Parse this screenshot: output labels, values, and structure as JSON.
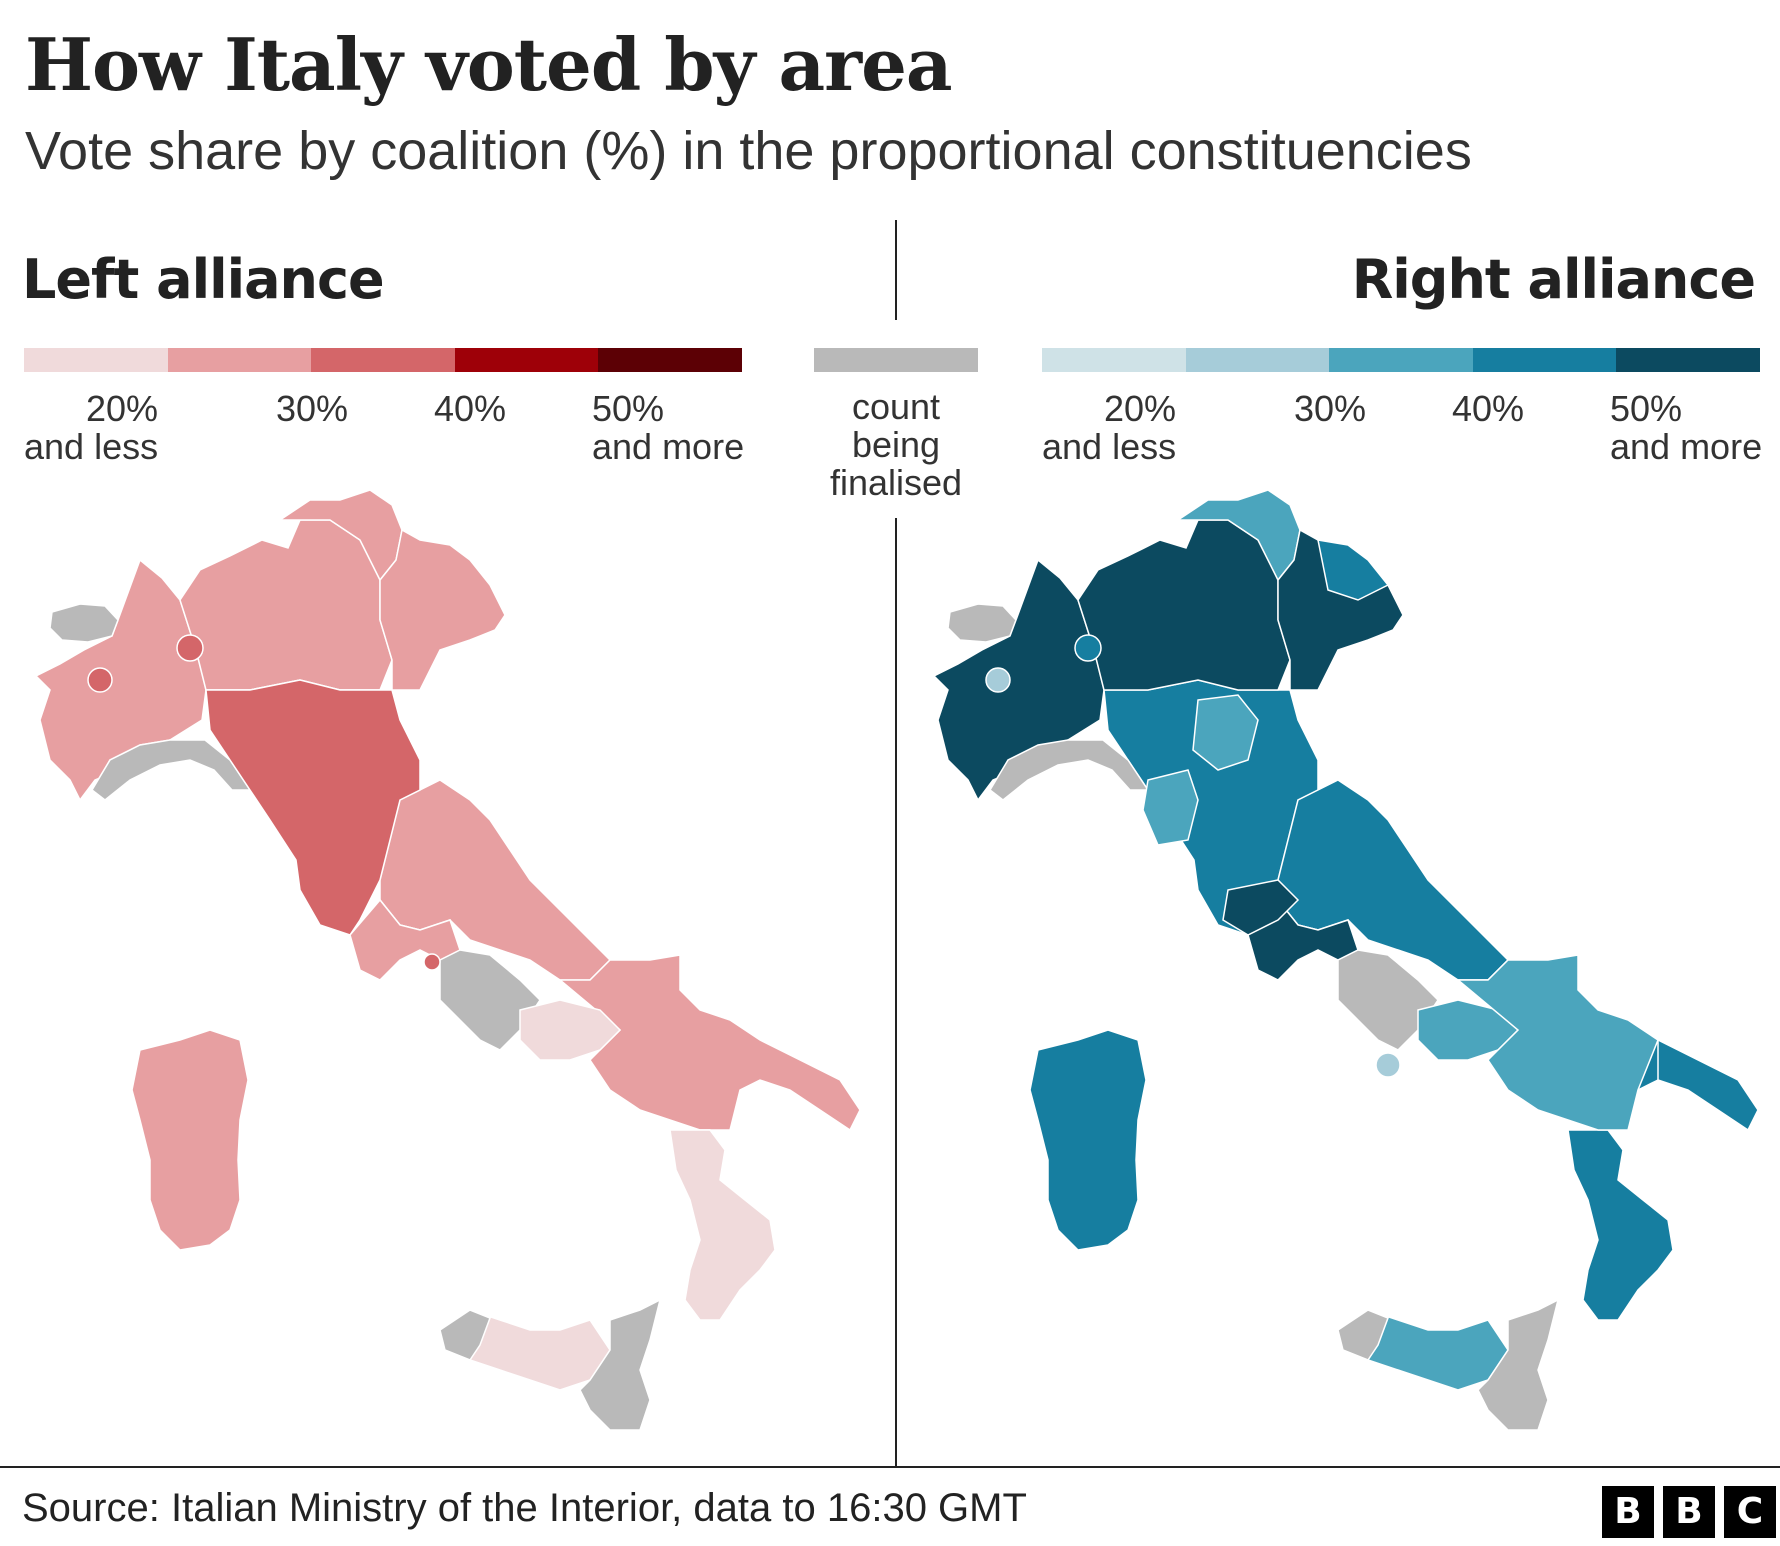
{
  "title": "How Italy voted by area",
  "subtitle": "Vote share by coalition (%) in the proportional constituencies",
  "left_panel": {
    "title": "Left alliance",
    "colors": [
      "#f0dadb",
      "#e79fa1",
      "#d46669",
      "#9e0008",
      "#5c0005"
    ],
    "ticks": [
      {
        "top": "20%",
        "bottom": "and less"
      },
      {
        "top": "30%",
        "bottom": ""
      },
      {
        "top": "40%",
        "bottom": ""
      },
      {
        "top": "50%",
        "bottom": "and more"
      }
    ]
  },
  "right_panel": {
    "title": "Right alliance",
    "colors": [
      "#cfe2e7",
      "#a6ccd9",
      "#4ba5bd",
      "#167ea0",
      "#0c4a60"
    ],
    "ticks": [
      {
        "top": "20%",
        "bottom": "and less"
      },
      {
        "top": "30%",
        "bottom": ""
      },
      {
        "top": "40%",
        "bottom": ""
      },
      {
        "top": "50%",
        "bottom": "and more"
      }
    ]
  },
  "pending": {
    "line1": "count",
    "line2": "being",
    "line3": "finalised",
    "color": "#b9b9b9"
  },
  "source": "Source: Italian Ministry of the Interior, data to 16:30 GMT",
  "logo": [
    "B",
    "B",
    "C"
  ]
}
